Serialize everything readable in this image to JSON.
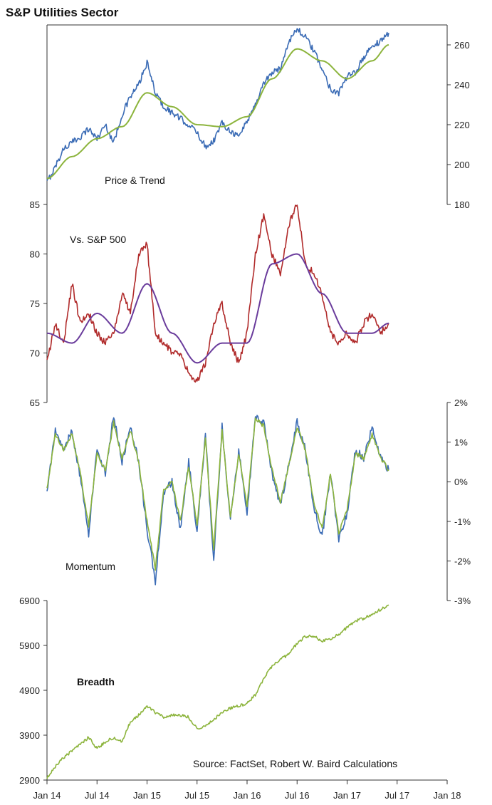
{
  "chart_data": {
    "type": "line",
    "title": "S&P Utilities Sector",
    "source": "Source: FactSet, Robert W. Baird Calculations",
    "x_ticks": [
      "Jan 14",
      "Jul 14",
      "Jan 15",
      "Jul 15",
      "Jan 16",
      "Jul 16",
      "Jan 17",
      "Jul 17",
      "Jan 18"
    ],
    "colors": {
      "price": "#3a6bb5",
      "trend": "#8cb43c",
      "relative": "#b02a2a",
      "relative_trend": "#6a3c9c",
      "momentum_a": "#3a6bb5",
      "momentum_b": "#8cb43c",
      "breadth": "#8cb43c"
    },
    "panels": [
      {
        "name": "Price & Trend",
        "axis": "right",
        "ylim": [
          180,
          270
        ],
        "y_ticks": [
          "260",
          "240",
          "220",
          "200",
          "180"
        ],
        "series": [
          {
            "key": "price",
            "x": [
              "2014-01",
              "2014-02",
              "2014-03",
              "2014-04",
              "2014-05",
              "2014-06",
              "2014-07",
              "2014-08",
              "2014-09",
              "2014-10",
              "2014-11",
              "2014-12",
              "2015-01",
              "2015-02",
              "2015-03",
              "2015-04",
              "2015-05",
              "2015-06",
              "2015-07",
              "2015-08",
              "2015-09",
              "2015-10",
              "2015-11",
              "2015-12",
              "2016-01",
              "2016-02",
              "2016-03",
              "2016-04",
              "2016-05",
              "2016-06",
              "2016-07",
              "2016-08",
              "2016-09",
              "2016-10",
              "2016-11",
              "2016-12",
              "2017-01",
              "2017-02",
              "2017-03",
              "2017-04",
              "2017-05",
              "2017-06"
            ],
            "y": [
              191,
              199,
              208,
              211,
              214,
              218,
              213,
              220,
              211,
              225,
              234,
              240,
              251,
              236,
              229,
              226,
              223,
              220,
              216,
              209,
              212,
              221,
              217,
              214,
              222,
              230,
              241,
              246,
              248,
              262,
              268,
              264,
              257,
              248,
              238,
              236,
              244,
              246,
              254,
              259,
              262,
              266
            ]
          },
          {
            "key": "trend",
            "x": [
              "2014-01",
              "2014-04",
              "2014-07",
              "2014-10",
              "2015-01",
              "2015-04",
              "2015-07",
              "2015-10",
              "2016-01",
              "2016-04",
              "2016-07",
              "2016-10",
              "2017-01",
              "2017-04",
              "2017-06"
            ],
            "y": [
              193,
              204,
              213,
              219,
              236,
              229,
              220,
              219,
              224,
              243,
              258,
              252,
              243,
              252,
              260
            ]
          }
        ]
      },
      {
        "name": "Vs. S&P 500",
        "axis": "left",
        "ylim": [
          65,
          85
        ],
        "y_ticks": [
          "85",
          "80",
          "75",
          "70",
          "65"
        ],
        "series": [
          {
            "key": "relative",
            "x": [
              "2014-01",
              "2014-02",
              "2014-03",
              "2014-04",
              "2014-05",
              "2014-06",
              "2014-07",
              "2014-08",
              "2014-09",
              "2014-10",
              "2014-11",
              "2014-12",
              "2015-01",
              "2015-02",
              "2015-03",
              "2015-04",
              "2015-05",
              "2015-06",
              "2015-07",
              "2015-08",
              "2015-09",
              "2015-10",
              "2015-11",
              "2015-12",
              "2016-01",
              "2016-02",
              "2016-03",
              "2016-04",
              "2016-05",
              "2016-06",
              "2016-07",
              "2016-08",
              "2016-09",
              "2016-10",
              "2016-11",
              "2016-12",
              "2017-01",
              "2017-02",
              "2017-03",
              "2017-04",
              "2017-05",
              "2017-06"
            ],
            "y": [
              69,
              73,
              71,
              77,
              73,
              74,
              72,
              71,
              72,
              76,
              74,
              80,
              81,
              72,
              71,
              70,
              70,
              68,
              67,
              69,
              73,
              75,
              71,
              69,
              72,
              80,
              84,
              80,
              78,
              83,
              85,
              79,
              78,
              76,
              72,
              71,
              72,
              71,
              73,
              74,
              72,
              73
            ]
          },
          {
            "key": "relative_trend",
            "x": [
              "2014-01",
              "2014-04",
              "2014-07",
              "2014-10",
              "2015-01",
              "2015-04",
              "2015-07",
              "2015-10",
              "2016-01",
              "2016-04",
              "2016-07",
              "2016-10",
              "2017-01",
              "2017-04",
              "2017-06"
            ],
            "y": [
              72,
              71,
              74,
              72,
              77,
              72,
              69,
              71,
              71,
              79,
              80,
              76,
              72,
              72,
              73
            ]
          }
        ]
      },
      {
        "name": "Momentum",
        "axis": "right",
        "ylim": [
          -3,
          2
        ],
        "y_ticks": [
          "2%",
          "1%",
          "0%",
          "-1%",
          "-2%",
          "-3%"
        ],
        "series": [
          {
            "key": "momentum_a",
            "x": [
              "2014-01",
              "2014-02",
              "2014-03",
              "2014-04",
              "2014-05",
              "2014-06",
              "2014-07",
              "2014-08",
              "2014-09",
              "2014-10",
              "2014-11",
              "2014-12",
              "2015-01",
              "2015-02",
              "2015-03",
              "2015-04",
              "2015-05",
              "2015-06",
              "2015-07",
              "2015-08",
              "2015-09",
              "2015-10",
              "2015-11",
              "2015-12",
              "2016-01",
              "2016-02",
              "2016-03",
              "2016-04",
              "2016-05",
              "2016-06",
              "2016-07",
              "2016-08",
              "2016-09",
              "2016-10",
              "2016-11",
              "2016-12",
              "2017-01",
              "2017-02",
              "2017-03",
              "2017-04",
              "2017-05",
              "2017-06"
            ],
            "y": [
              -0.3,
              1.3,
              0.8,
              1.3,
              0.1,
              -1.3,
              0.8,
              0.2,
              1.7,
              0.5,
              1.4,
              0.5,
              -1.2,
              -2.5,
              -0.3,
              0.0,
              -1.2,
              0.5,
              -1.3,
              1.2,
              -2.0,
              1.4,
              -1.0,
              0.8,
              -0.8,
              1.7,
              1.5,
              0.2,
              -0.6,
              0.4,
              1.5,
              0.8,
              -0.6,
              -1.4,
              0.2,
              -1.5,
              -0.8,
              0.8,
              0.6,
              1.4,
              0.6,
              0.3
            ]
          },
          {
            "key": "momentum_b",
            "x": [
              "2014-01",
              "2014-02",
              "2014-03",
              "2014-04",
              "2014-05",
              "2014-06",
              "2014-07",
              "2014-08",
              "2014-09",
              "2014-10",
              "2014-11",
              "2014-12",
              "2015-01",
              "2015-02",
              "2015-03",
              "2015-04",
              "2015-05",
              "2015-06",
              "2015-07",
              "2015-08",
              "2015-09",
              "2015-10",
              "2015-11",
              "2015-12",
              "2016-01",
              "2016-02",
              "2016-03",
              "2016-04",
              "2016-05",
              "2016-06",
              "2016-07",
              "2016-08",
              "2016-09",
              "2016-10",
              "2016-11",
              "2016-12",
              "2017-01",
              "2017-02",
              "2017-03",
              "2017-04",
              "2017-05",
              "2017-06"
            ],
            "y": [
              -0.2,
              1.2,
              0.8,
              1.2,
              0.2,
              -1.1,
              0.7,
              0.3,
              1.5,
              0.6,
              1.3,
              0.5,
              -1.0,
              -2.2,
              -0.2,
              0.0,
              -1.0,
              0.4,
              -1.1,
              1.1,
              -1.7,
              1.3,
              -0.9,
              0.7,
              -0.6,
              1.6,
              1.4,
              0.3,
              -0.5,
              0.4,
              1.4,
              0.8,
              -0.5,
              -1.2,
              0.2,
              -1.3,
              -0.7,
              0.7,
              0.6,
              1.2,
              0.6,
              0.3
            ]
          }
        ]
      },
      {
        "name": "Breadth",
        "axis": "left",
        "ylim": [
          2900,
          6900
        ],
        "y_ticks": [
          "6900",
          "5900",
          "4900",
          "3900",
          "2900"
        ],
        "series": [
          {
            "key": "breadth",
            "x": [
              "2014-01",
              "2014-02",
              "2014-03",
              "2014-04",
              "2014-05",
              "2014-06",
              "2014-07",
              "2014-08",
              "2014-09",
              "2014-10",
              "2014-11",
              "2014-12",
              "2015-01",
              "2015-02",
              "2015-03",
              "2015-04",
              "2015-05",
              "2015-06",
              "2015-07",
              "2015-08",
              "2015-09",
              "2015-10",
              "2015-11",
              "2015-12",
              "2016-01",
              "2016-02",
              "2016-03",
              "2016-04",
              "2016-05",
              "2016-06",
              "2016-07",
              "2016-08",
              "2016-09",
              "2016-10",
              "2016-11",
              "2016-12",
              "2017-01",
              "2017-02",
              "2017-03",
              "2017-04",
              "2017-05",
              "2017-06"
            ],
            "y": [
              2950,
              3200,
              3400,
              3550,
              3700,
              3850,
              3600,
              3750,
              3850,
              3750,
              4200,
              4350,
              4550,
              4400,
              4300,
              4350,
              4350,
              4300,
              4050,
              4100,
              4250,
              4400,
              4500,
              4550,
              4600,
              4800,
              5150,
              5450,
              5600,
              5700,
              5950,
              6100,
              6100,
              6000,
              6050,
              6150,
              6300,
              6450,
              6500,
              6600,
              6700,
              6800
            ]
          }
        ]
      }
    ]
  }
}
